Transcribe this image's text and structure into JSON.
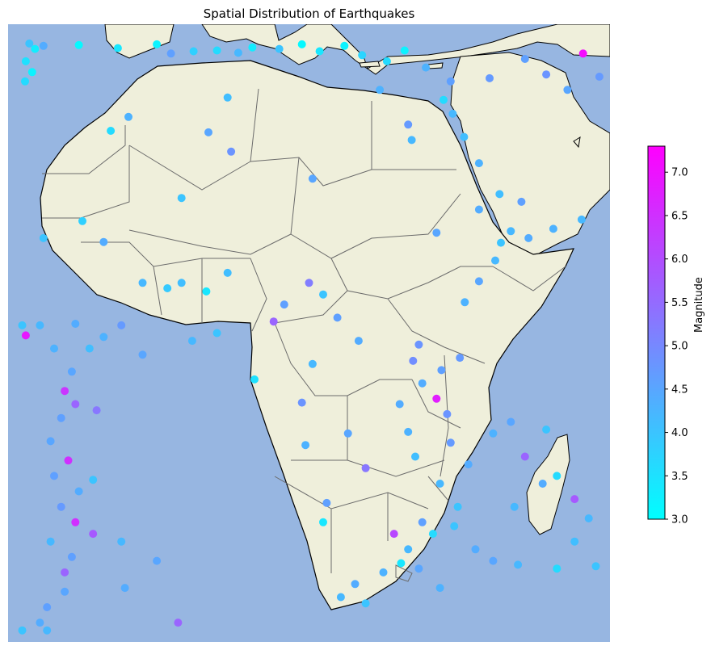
{
  "title": "Spatial Distribution of Earthquakes",
  "colorbar": {
    "label": "Magnitude",
    "min": 3.0,
    "max": 7.3,
    "ticks": [
      "3.0",
      "3.5",
      "4.0",
      "4.5",
      "5.0",
      "5.5",
      "6.0",
      "6.5",
      "7.0"
    ],
    "color_low": "#00ffff",
    "color_high": "#ff00ff"
  },
  "colors": {
    "ocean": "#97b6e1",
    "land": "#efefdb",
    "coast": "#000000",
    "border": "#6b6b6b"
  },
  "map": {
    "extent_lon": [
      -28,
      57
    ],
    "extent_lat": [
      -40,
      40
    ]
  },
  "chart_data": {
    "type": "scatter",
    "xlabel": "",
    "ylabel": "",
    "points": [
      {
        "lon": -25.0,
        "lat": 37.5,
        "mag": 4.0
      },
      {
        "lon": -24.2,
        "lat": 36.8,
        "mag": 3.3
      },
      {
        "lon": -23.0,
        "lat": 37.2,
        "mag": 4.4
      },
      {
        "lon": -25.5,
        "lat": 35.2,
        "mag": 3.5
      },
      {
        "lon": -24.6,
        "lat": 33.8,
        "mag": 3.2
      },
      {
        "lon": -25.6,
        "lat": 32.6,
        "mag": 3.6
      },
      {
        "lon": -18.0,
        "lat": 37.3,
        "mag": 3.1
      },
      {
        "lon": -12.5,
        "lat": 36.9,
        "mag": 3.4
      },
      {
        "lon": -7.0,
        "lat": 37.4,
        "mag": 3.2
      },
      {
        "lon": -5.0,
        "lat": 36.2,
        "mag": 4.6
      },
      {
        "lon": -1.8,
        "lat": 36.5,
        "mag": 3.8
      },
      {
        "lon": 1.5,
        "lat": 36.6,
        "mag": 3.6
      },
      {
        "lon": 4.5,
        "lat": 36.3,
        "mag": 4.2
      },
      {
        "lon": 6.5,
        "lat": 37.0,
        "mag": 3.3
      },
      {
        "lon": 10.3,
        "lat": 36.8,
        "mag": 4.0
      },
      {
        "lon": 13.5,
        "lat": 37.4,
        "mag": 3.1
      },
      {
        "lon": 16.0,
        "lat": 36.5,
        "mag": 3.4
      },
      {
        "lon": 19.5,
        "lat": 37.2,
        "mag": 3.2
      },
      {
        "lon": 22.0,
        "lat": 36.0,
        "mag": 3.7
      },
      {
        "lon": 25.5,
        "lat": 35.2,
        "mag": 3.6
      },
      {
        "lon": 28.0,
        "lat": 36.6,
        "mag": 3.2
      },
      {
        "lon": 31.0,
        "lat": 34.4,
        "mag": 4.3
      },
      {
        "lon": 34.5,
        "lat": 32.6,
        "mag": 4.6
      },
      {
        "lon": 33.5,
        "lat": 30.2,
        "mag": 3.6
      },
      {
        "lon": 34.8,
        "lat": 28.4,
        "mag": 4.2
      },
      {
        "lon": 36.4,
        "lat": 25.4,
        "mag": 4.1
      },
      {
        "lon": 38.5,
        "lat": 22.0,
        "mag": 4.3
      },
      {
        "lon": 41.4,
        "lat": 18.0,
        "mag": 4.1
      },
      {
        "lon": 43.0,
        "lat": 13.2,
        "mag": 4.2
      },
      {
        "lon": 45.5,
        "lat": 12.3,
        "mag": 4.4
      },
      {
        "lon": 49.0,
        "lat": 13.5,
        "mag": 4.3
      },
      {
        "lon": 53.0,
        "lat": 14.7,
        "mag": 4.2
      },
      {
        "lon": 41.6,
        "lat": 11.7,
        "mag": 4.0
      },
      {
        "lon": 40.8,
        "lat": 9.4,
        "mag": 4.2
      },
      {
        "lon": 38.5,
        "lat": 6.7,
        "mag": 4.5
      },
      {
        "lon": 36.5,
        "lat": 4.0,
        "mag": 4.3
      },
      {
        "lon": 40.0,
        "lat": 33.0,
        "mag": 4.7
      },
      {
        "lon": 45.0,
        "lat": 35.5,
        "mag": 4.6
      },
      {
        "lon": 48.0,
        "lat": 33.5,
        "mag": 4.8
      },
      {
        "lon": 51.0,
        "lat": 31.5,
        "mag": 4.5
      },
      {
        "lon": 53.2,
        "lat": 36.2,
        "mag": 7.1
      },
      {
        "lon": 55.5,
        "lat": 33.2,
        "mag": 4.7
      },
      {
        "lon": 30.0,
        "lat": -1.5,
        "mag": 4.8
      },
      {
        "lon": 29.2,
        "lat": -3.6,
        "mag": 4.9
      },
      {
        "lon": 30.5,
        "lat": -6.5,
        "mag": 4.4
      },
      {
        "lon": 33.2,
        "lat": -4.8,
        "mag": 4.6
      },
      {
        "lon": 35.8,
        "lat": -3.2,
        "mag": 4.7
      },
      {
        "lon": 32.5,
        "lat": -8.5,
        "mag": 6.8
      },
      {
        "lon": 34.0,
        "lat": -10.5,
        "mag": 4.8
      },
      {
        "lon": 34.5,
        "lat": -14.2,
        "mag": 4.7
      },
      {
        "lon": 27.3,
        "lat": -9.2,
        "mag": 4.4
      },
      {
        "lon": 28.5,
        "lat": -12.8,
        "mag": 4.3
      },
      {
        "lon": 29.5,
        "lat": -16.0,
        "mag": 4.1
      },
      {
        "lon": 33.0,
        "lat": -19.5,
        "mag": 4.2
      },
      {
        "lon": 35.5,
        "lat": -22.5,
        "mag": 4.0
      },
      {
        "lon": 37.0,
        "lat": -17.0,
        "mag": 4.4
      },
      {
        "lon": 40.5,
        "lat": -13.0,
        "mag": 4.3
      },
      {
        "lon": 43.0,
        "lat": -11.5,
        "mag": 4.5
      },
      {
        "lon": 48.0,
        "lat": -12.5,
        "mag": 4.0
      },
      {
        "lon": 47.5,
        "lat": -19.5,
        "mag": 4.4
      },
      {
        "lon": 45.0,
        "lat": -16.0,
        "mag": 5.6
      },
      {
        "lon": 49.5,
        "lat": -18.5,
        "mag": 3.6
      },
      {
        "lon": 26.5,
        "lat": -26.0,
        "mag": 6.1
      },
      {
        "lon": 27.5,
        "lat": -29.8,
        "mag": 3.4
      },
      {
        "lon": 28.5,
        "lat": -28.0,
        "mag": 4.2
      },
      {
        "lon": 30.0,
        "lat": -30.5,
        "mag": 4.5
      },
      {
        "lon": 25.0,
        "lat": -31.0,
        "mag": 4.3
      },
      {
        "lon": 21.0,
        "lat": -32.5,
        "mag": 4.4
      },
      {
        "lon": 19.0,
        "lat": -34.2,
        "mag": 4.2
      },
      {
        "lon": 22.5,
        "lat": -35.0,
        "mag": 4.0
      },
      {
        "lon": 16.5,
        "lat": -24.5,
        "mag": 3.4
      },
      {
        "lon": 17.0,
        "lat": -22.0,
        "mag": 4.6
      },
      {
        "lon": 22.5,
        "lat": -17.5,
        "mag": 5.3
      },
      {
        "lon": 20.0,
        "lat": -13.0,
        "mag": 4.5
      },
      {
        "lon": 14.0,
        "lat": -14.5,
        "mag": 4.3
      },
      {
        "lon": 13.5,
        "lat": -9.0,
        "mag": 4.8
      },
      {
        "lon": 15.0,
        "lat": -4.0,
        "mag": 4.2
      },
      {
        "lon": 18.5,
        "lat": 2.0,
        "mag": 4.6
      },
      {
        "lon": 21.5,
        "lat": -1.0,
        "mag": 4.4
      },
      {
        "lon": 11.0,
        "lat": 3.7,
        "mag": 4.6
      },
      {
        "lon": 14.5,
        "lat": 6.5,
        "mag": 5.2
      },
      {
        "lon": 16.5,
        "lat": 5.0,
        "mag": 4.0
      },
      {
        "lon": 9.5,
        "lat": 1.5,
        "mag": 5.6
      },
      {
        "lon": 6.8,
        "lat": -6.0,
        "mag": 3.5
      },
      {
        "lon": 3.0,
        "lat": 7.8,
        "mag": 4.1
      },
      {
        "lon": 1.5,
        "lat": 0.0,
        "mag": 4.0
      },
      {
        "lon": -2.0,
        "lat": -1.0,
        "mag": 4.2
      },
      {
        "lon": -9.0,
        "lat": -2.8,
        "mag": 4.5
      },
      {
        "lon": -12.0,
        "lat": 1.0,
        "mag": 4.7
      },
      {
        "lon": -14.5,
        "lat": -0.5,
        "mag": 4.3
      },
      {
        "lon": -16.5,
        "lat": -2.0,
        "mag": 4.1
      },
      {
        "lon": -18.5,
        "lat": 1.2,
        "mag": 4.4
      },
      {
        "lon": -23.5,
        "lat": 1.0,
        "mag": 4.2
      },
      {
        "lon": -26.0,
        "lat": 1.0,
        "mag": 4.0
      },
      {
        "lon": -25.5,
        "lat": -0.3,
        "mag": 6.9
      },
      {
        "lon": -21.5,
        "lat": -2.0,
        "mag": 4.3
      },
      {
        "lon": -19.0,
        "lat": -5.0,
        "mag": 4.5
      },
      {
        "lon": -20.0,
        "lat": -7.5,
        "mag": 6.4
      },
      {
        "lon": -18.5,
        "lat": -9.2,
        "mag": 5.6
      },
      {
        "lon": -20.5,
        "lat": -11.0,
        "mag": 4.6
      },
      {
        "lon": -15.5,
        "lat": -10.0,
        "mag": 5.3
      },
      {
        "lon": -22.0,
        "lat": -14.0,
        "mag": 4.5
      },
      {
        "lon": -19.5,
        "lat": -16.5,
        "mag": 6.5
      },
      {
        "lon": -21.5,
        "lat": -18.5,
        "mag": 4.6
      },
      {
        "lon": -18.0,
        "lat": -20.5,
        "mag": 4.4
      },
      {
        "lon": -16.0,
        "lat": -19.0,
        "mag": 4.0
      },
      {
        "lon": -20.5,
        "lat": -22.5,
        "mag": 4.7
      },
      {
        "lon": -18.5,
        "lat": -24.5,
        "mag": 6.5
      },
      {
        "lon": -16.0,
        "lat": -26.0,
        "mag": 5.8
      },
      {
        "lon": -22.0,
        "lat": -27.0,
        "mag": 4.2
      },
      {
        "lon": -19.0,
        "lat": -29.0,
        "mag": 4.6
      },
      {
        "lon": -20.0,
        "lat": -31.0,
        "mag": 5.6
      },
      {
        "lon": -20.0,
        "lat": -33.5,
        "mag": 4.5
      },
      {
        "lon": -22.5,
        "lat": -35.5,
        "mag": 4.6
      },
      {
        "lon": -23.5,
        "lat": -37.5,
        "mag": 4.4
      },
      {
        "lon": -22.5,
        "lat": -38.5,
        "mag": 4.2
      },
      {
        "lon": -26.0,
        "lat": -38.5,
        "mag": 4.0
      },
      {
        "lon": -12.0,
        "lat": -27.0,
        "mag": 4.2
      },
      {
        "lon": -7.0,
        "lat": -29.5,
        "mag": 4.5
      },
      {
        "lon": -11.5,
        "lat": -33.0,
        "mag": 4.4
      },
      {
        "lon": -4.0,
        "lat": -37.5,
        "mag": 5.6
      },
      {
        "lon": -23.0,
        "lat": 12.3,
        "mag": 4.0
      },
      {
        "lon": -17.5,
        "lat": 14.5,
        "mag": 3.8
      },
      {
        "lon": -14.5,
        "lat": 11.8,
        "mag": 4.4
      },
      {
        "lon": -9.0,
        "lat": 6.5,
        "mag": 4.2
      },
      {
        "lon": -5.5,
        "lat": 5.8,
        "mag": 3.9
      },
      {
        "lon": -3.5,
        "lat": 6.5,
        "mag": 4.1
      },
      {
        "lon": 0.0,
        "lat": 5.4,
        "mag": 3.4
      },
      {
        "lon": -3.5,
        "lat": 17.5,
        "mag": 4.0
      },
      {
        "lon": -13.5,
        "lat": 26.2,
        "mag": 3.6
      },
      {
        "lon": -11.0,
        "lat": 28.0,
        "mag": 4.3
      },
      {
        "lon": 3.0,
        "lat": 30.5,
        "mag": 4.1
      },
      {
        "lon": 0.3,
        "lat": 26.0,
        "mag": 4.5
      },
      {
        "lon": 3.5,
        "lat": 23.5,
        "mag": 4.8
      },
      {
        "lon": 15.0,
        "lat": 20.0,
        "mag": 4.5
      },
      {
        "lon": 24.5,
        "lat": 31.5,
        "mag": 4.3
      },
      {
        "lon": 28.5,
        "lat": 27.0,
        "mag": 4.7
      },
      {
        "lon": 29.0,
        "lat": 25.0,
        "mag": 4.2
      },
      {
        "lon": 38.5,
        "lat": 16.0,
        "mag": 4.4
      },
      {
        "lon": 44.5,
        "lat": 17.0,
        "mag": 4.6
      },
      {
        "lon": 32.5,
        "lat": 13.0,
        "mag": 4.5
      },
      {
        "lon": 32.0,
        "lat": -26.0,
        "mag": 3.6
      },
      {
        "lon": 35.0,
        "lat": -25.0,
        "mag": 4.0
      },
      {
        "lon": 30.5,
        "lat": -24.5,
        "mag": 4.6
      },
      {
        "lon": 43.5,
        "lat": -22.5,
        "mag": 4.2
      },
      {
        "lon": 52.0,
        "lat": -27.0,
        "mag": 4.1
      },
      {
        "lon": 38.0,
        "lat": -28.0,
        "mag": 4.4
      },
      {
        "lon": 40.5,
        "lat": -29.5,
        "mag": 4.5
      },
      {
        "lon": 44.0,
        "lat": -30.0,
        "mag": 4.2
      },
      {
        "lon": 49.5,
        "lat": -30.5,
        "mag": 3.6
      },
      {
        "lon": 55.0,
        "lat": -30.2,
        "mag": 4.0
      },
      {
        "lon": 52.0,
        "lat": -21.5,
        "mag": 5.8
      },
      {
        "lon": 54.0,
        "lat": -24.0,
        "mag": 4.2
      },
      {
        "lon": 33.0,
        "lat": -33.0,
        "mag": 4.3
      }
    ]
  }
}
